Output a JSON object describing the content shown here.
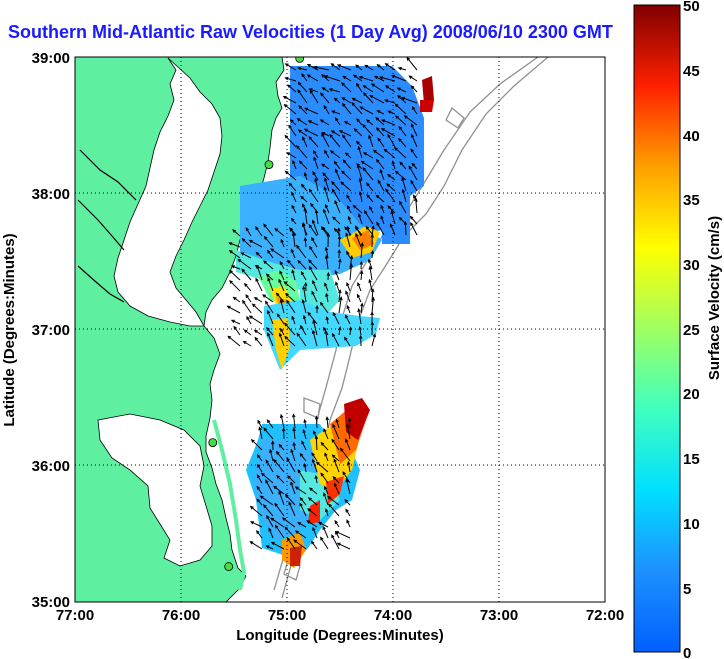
{
  "title": "Southern Mid-Atlantic Raw Velocities (1 Day Avg) 2008/06/10 2300 GMT",
  "colors": {
    "land": "#5ef0a0",
    "water": "#ffffff",
    "title": "#1a1aff",
    "grid": "#000000",
    "bathymetry": "#909090",
    "station": "#44dd44",
    "arrow": "#000000"
  },
  "map": {
    "x_axis_label": "Longitude (Degrees:Minutes)",
    "y_axis_label": "Latitude (Degrees:Minutes)",
    "x_ticks": [
      "77:00",
      "76:00",
      "75:00",
      "74:00",
      "73:00",
      "72:00"
    ],
    "y_ticks": [
      "39:00",
      "38:00",
      "37:00",
      "36:00",
      "35:00"
    ],
    "lon_range": [
      -77,
      -72
    ],
    "lat_range": [
      35,
      39
    ],
    "grid_lines": "dotted"
  },
  "colorbar": {
    "label": "Surface Velocity (cm/s)",
    "ticks": [
      "50",
      "45",
      "40",
      "35",
      "30",
      "25",
      "20",
      "15",
      "10",
      "5",
      "0"
    ],
    "range": [
      0,
      50
    ],
    "colormap": "jet"
  },
  "stations": [
    {
      "lon": -74.88,
      "lat": 38.99
    },
    {
      "lon": -75.17,
      "lat": 38.21
    },
    {
      "lon": -75.7,
      "lat": 36.17
    },
    {
      "lon": -75.55,
      "lat": 35.26
    }
  ]
}
